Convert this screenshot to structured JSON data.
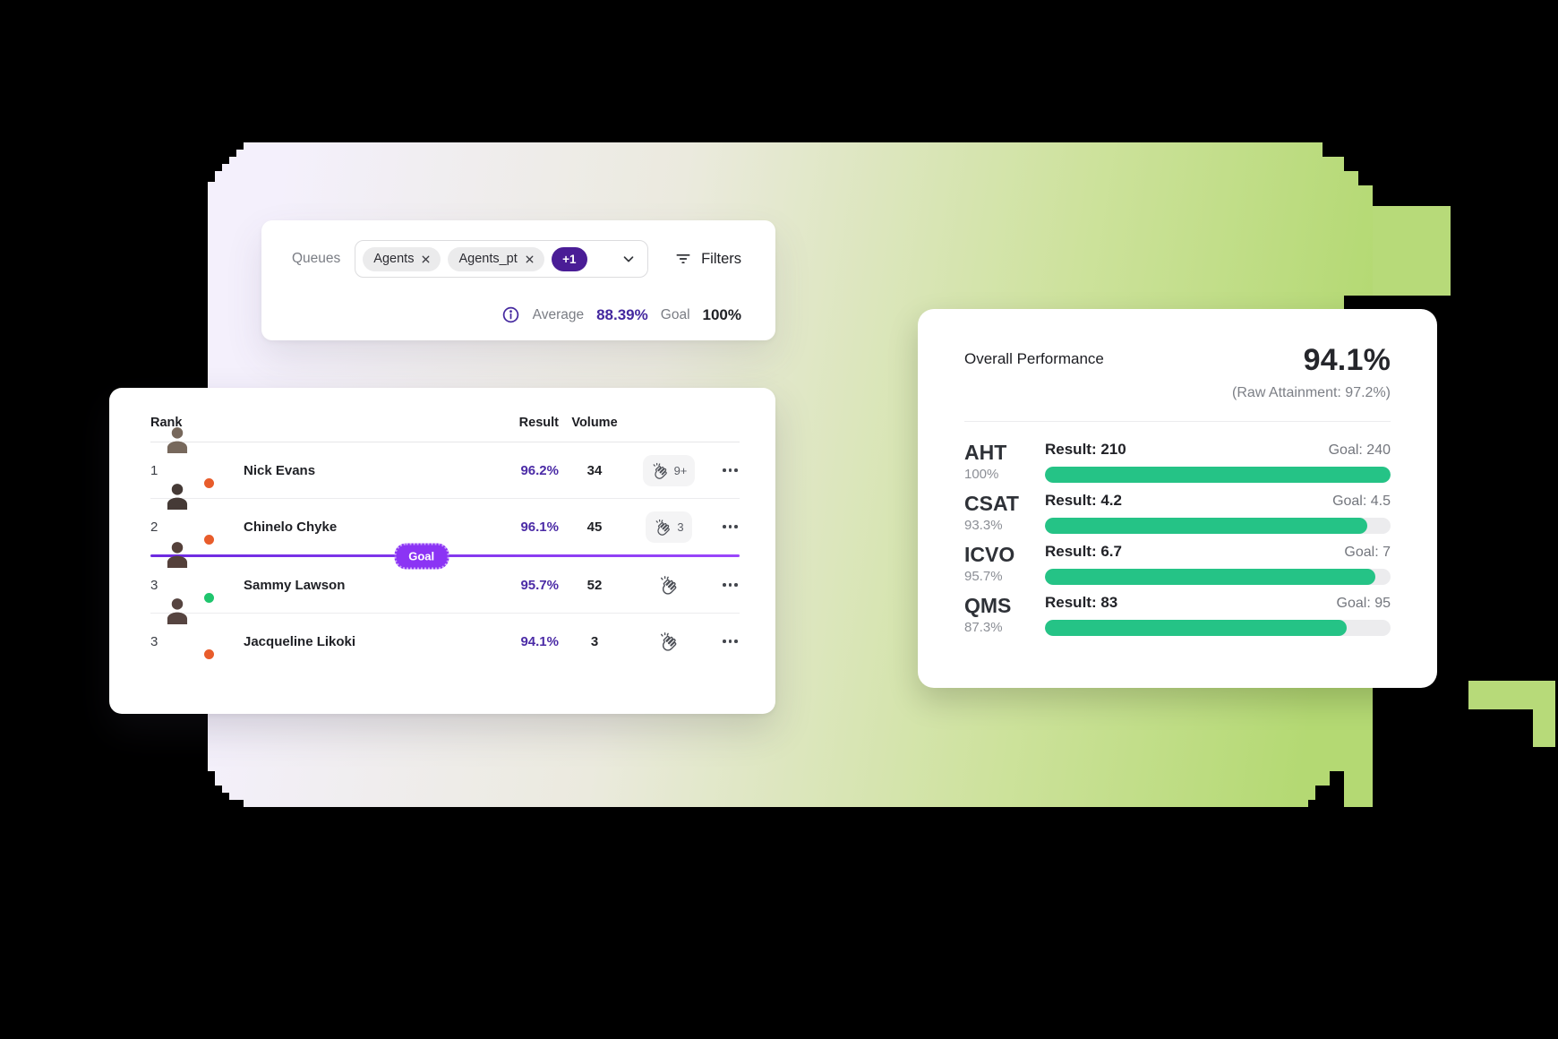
{
  "filter_bar": {
    "queues_label": "Queues",
    "chips": [
      {
        "label": "Agents"
      },
      {
        "label": "Agents_pt"
      }
    ],
    "more_chip": "+1",
    "filters_label": "Filters",
    "average_label": "Average",
    "average_value": "88.39%",
    "goal_label": "Goal",
    "goal_value": "100%"
  },
  "leaderboard": {
    "columns": {
      "rank": "Rank",
      "result": "Result",
      "volume": "Volume"
    },
    "goal_divider_label": "Goal",
    "rows": [
      {
        "rank": "1",
        "name": "Nick Evans",
        "result": "96.2%",
        "volume": "34",
        "claps": "9+",
        "status_color": "#e85c2b",
        "avatar": {
          "bg": "#c6cfd2",
          "fg": "#77685c"
        }
      },
      {
        "rank": "2",
        "name": "Chinelo Chyke",
        "result": "96.1%",
        "volume": "45",
        "claps": "3",
        "status_color": "#e85c2b",
        "avatar": {
          "bg": "#cdd6cd",
          "fg": "#453a36"
        }
      },
      {
        "rank": "3",
        "name": "Sammy Lawson",
        "result": "95.7%",
        "volume": "52",
        "claps": "",
        "status_color": "#1fc56d",
        "avatar": {
          "bg": "#d9c0a8",
          "fg": "#54403a"
        }
      },
      {
        "rank": "3",
        "name": "Jacqueline Likoki",
        "result": "94.1%",
        "volume": "3",
        "claps": "",
        "status_color": "#e85c2b",
        "avatar": {
          "bg": "#e9e2da",
          "fg": "#564440"
        }
      }
    ]
  },
  "performance": {
    "title": "Overall Performance",
    "score": "94.1%",
    "raw_attainment": "(Raw Attainment: 97.2%)",
    "bar_color": "#25c386",
    "metrics": [
      {
        "name": "AHT",
        "attainment": "100%",
        "result_label": "Result: 210",
        "goal_label": "Goal: 240",
        "fill_pct": 100
      },
      {
        "name": "CSAT",
        "attainment": "93.3%",
        "result_label": "Result: 4.2",
        "goal_label": "Goal: 4.5",
        "fill_pct": 93.3
      },
      {
        "name": "ICVO",
        "attainment": "95.7%",
        "result_label": "Result: 6.7",
        "goal_label": "Goal: 7",
        "fill_pct": 95.7
      },
      {
        "name": "QMS",
        "attainment": "87.3%",
        "result_label": "Result: 83",
        "goal_label": "Goal: 95",
        "fill_pct": 87.3
      }
    ]
  },
  "colors": {
    "accent_purple": "#4b2ba6",
    "goal_line_purple": "#8b34f4",
    "chip_badge_purple": "#4a1d96",
    "bar_green": "#25c386",
    "status_orange": "#e85c2b",
    "status_green": "#1fc56d"
  }
}
